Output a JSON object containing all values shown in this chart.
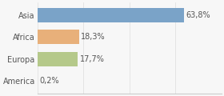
{
  "categories": [
    "Asia",
    "Africa",
    "Europa",
    "America"
  ],
  "values": [
    63.8,
    18.3,
    17.7,
    0.2
  ],
  "labels": [
    "63,8%",
    "18,3%",
    "17,7%",
    "0,2%"
  ],
  "bar_colors": [
    "#7aa3c8",
    "#e8b07a",
    "#b5c98a",
    "#c8c8c8"
  ],
  "background_color": "#f7f7f7",
  "xlim": [
    0,
    80
  ],
  "label_fontsize": 7,
  "category_fontsize": 7,
  "bar_height": 0.65
}
